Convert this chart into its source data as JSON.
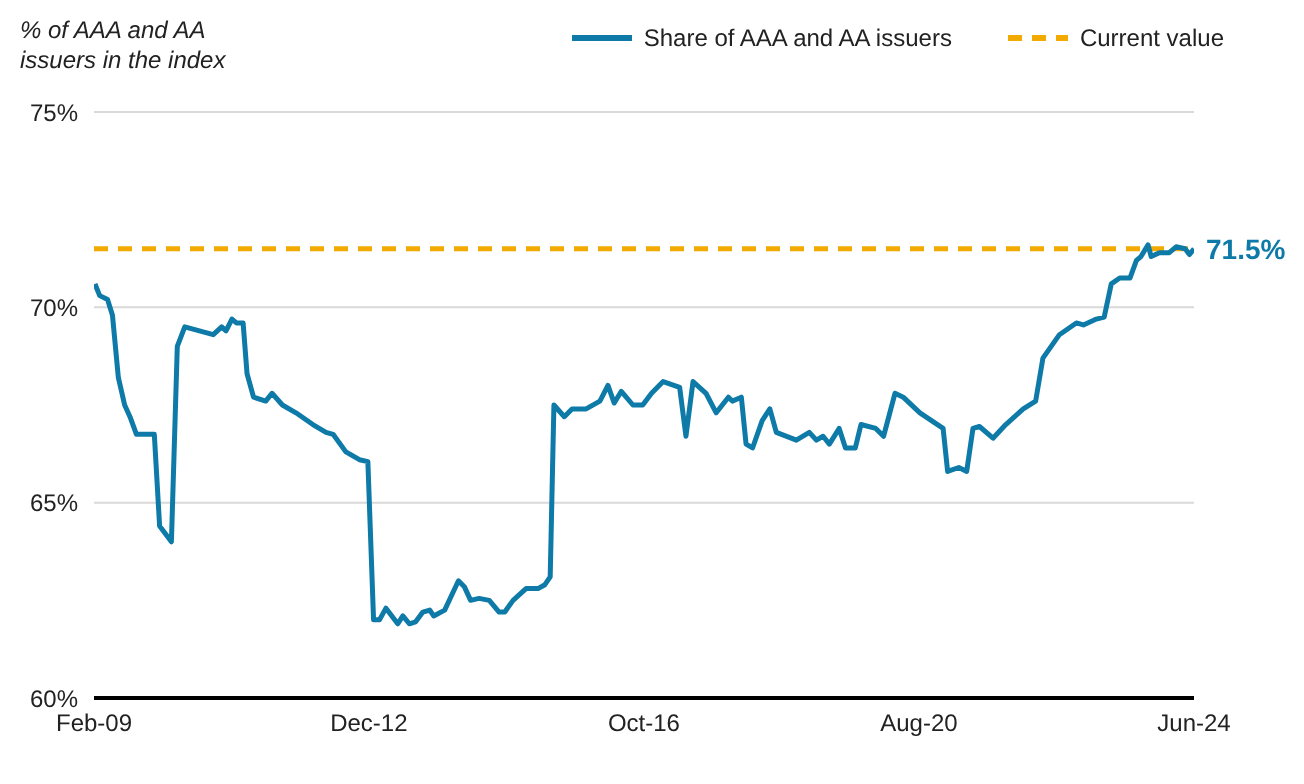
{
  "chart_data": {
    "type": "line",
    "ylabel": "% of AAA and AA issuers in the index",
    "xlim": [
      "2009-02",
      "2024-06"
    ],
    "xticks": [
      {
        "value": "2009-02",
        "label": "Feb-09"
      },
      {
        "value": "2012-12",
        "label": "Dec-12"
      },
      {
        "value": "2016-10",
        "label": "Oct-16"
      },
      {
        "value": "2020-08",
        "label": "Aug-20"
      },
      {
        "value": "2024-06",
        "label": "Jun-24"
      }
    ],
    "ylim": [
      60,
      75
    ],
    "yticks": [
      {
        "value": 60,
        "label": "60%"
      },
      {
        "value": 65,
        "label": "65%"
      },
      {
        "value": 70,
        "label": "70%"
      },
      {
        "value": 75,
        "label": "75%"
      }
    ],
    "grid": "y",
    "legend": "top right",
    "marker": "none",
    "line_style": "solid",
    "series": [
      {
        "name": "Share of AAA and AA issuers",
        "color": "#0e7aa8",
        "x": [
          "2009-02-06",
          "2009-03-02",
          "2009-04-11",
          "2009-05-06",
          "2009-06-05",
          "2009-07-07",
          "2009-08-03",
          "2009-09-05",
          "2009-12-05",
          "2010-01-01",
          "2010-03-02",
          "2010-04-01",
          "2010-05-09",
          "2010-10-01",
          "2010-11-13",
          "2010-12-05",
          "2011-01-04",
          "2011-01-27",
          "2011-03-02",
          "2011-03-22",
          "2011-04-24",
          "2011-06-25",
          "2011-07-27",
          "2011-09-18",
          "2011-11-26",
          "2012-02-20",
          "2012-04-27",
          "2012-06-02",
          "2012-08-06",
          "2012-10-14",
          "2012-11-26",
          "2012-12-25",
          "2013-01-24",
          "2013-02-26",
          "2013-04-27",
          "2013-05-23",
          "2013-06-25",
          "2013-07-27",
          "2013-09-02",
          "2013-10-07",
          "2013-10-27",
          "2013-12-22",
          "2014-03-02",
          "2014-04-01",
          "2014-05-03",
          "2014-06-15",
          "2014-08-06",
          "2014-09-25",
          "2014-10-24",
          "2014-12-05",
          "2015-02-09",
          "2015-04-11",
          "2015-05-16",
          "2015-06-12",
          "2015-07-01",
          "2015-08-23",
          "2015-10-01",
          "2015-12-12",
          "2016-02-20",
          "2016-04-01",
          "2016-05-03",
          "2016-06-08",
          "2016-08-06",
          "2016-09-25",
          "2016-11-09",
          "2017-01-07",
          "2017-04-01",
          "2017-05-03",
          "2017-06-08",
          "2017-08-13",
          "2017-10-04",
          "2017-12-05",
          "2017-12-25",
          "2018-02-09",
          "2018-03-05",
          "2018-04-07",
          "2018-05-26",
          "2018-07-04",
          "2018-08-06",
          "2018-11-16",
          "2019-01-21",
          "2019-02-26",
          "2019-04-01",
          "2019-05-03",
          "2019-06-22",
          "2019-07-24",
          "2019-09-12",
          "2019-10-11",
          "2019-12-25",
          "2020-02-03",
          "2020-04-01",
          "2020-05-13",
          "2020-08-06",
          "2020-12-02",
          "2020-12-25",
          "2021-02-20",
          "2021-04-01",
          "2021-05-03",
          "2021-06-05",
          "2021-08-13",
          "2021-10-17",
          "2022-01-14",
          "2022-03-18",
          "2022-04-24",
          "2022-07-17",
          "2022-10-11",
          "2022-11-16",
          "2023-01-21",
          "2023-03-02",
          "2023-04-07",
          "2023-05-20",
          "2023-07-11",
          "2023-08-13",
          "2023-09-05",
          "2023-10-11",
          "2023-10-27",
          "2023-12-08",
          "2024-01-27",
          "2024-03-02",
          "2024-04-17",
          "2024-05-09",
          "2024-06-01"
        ],
        "values": [
          70.6,
          70.3,
          70.2,
          69.8,
          68.2,
          67.5,
          67.2,
          66.75,
          66.75,
          64.4,
          64.0,
          69.0,
          69.5,
          69.3,
          69.5,
          69.4,
          69.7,
          69.6,
          69.6,
          68.3,
          67.7,
          67.6,
          67.8,
          67.5,
          67.3,
          67.0,
          66.8,
          66.75,
          66.3,
          66.1,
          66.05,
          62.0,
          62.0,
          62.3,
          61.9,
          62.1,
          61.9,
          61.95,
          62.2,
          62.25,
          62.1,
          62.25,
          63.0,
          62.85,
          62.5,
          62.55,
          62.5,
          62.2,
          62.2,
          62.5,
          62.8,
          62.8,
          62.9,
          63.1,
          67.5,
          67.2,
          67.4,
          67.4,
          67.6,
          68.0,
          67.55,
          67.85,
          67.5,
          67.5,
          67.8,
          68.1,
          67.95,
          66.7,
          68.1,
          67.8,
          67.3,
          67.7,
          67.6,
          67.7,
          66.5,
          66.4,
          67.1,
          67.4,
          66.8,
          66.6,
          66.8,
          66.6,
          66.7,
          66.5,
          66.9,
          66.4,
          66.4,
          67.0,
          66.9,
          66.7,
          67.8,
          67.7,
          67.3,
          66.9,
          65.8,
          65.9,
          65.8,
          66.9,
          66.95,
          66.65,
          67.0,
          67.4,
          67.6,
          68.7,
          69.3,
          69.6,
          69.55,
          69.7,
          69.75,
          70.6,
          70.75,
          70.75,
          71.2,
          71.3,
          71.6,
          71.3,
          71.4,
          71.4,
          71.55,
          71.5,
          71.35,
          71.5
        ]
      }
    ],
    "ref_lines": [
      {
        "axis": "y",
        "value": 71.5,
        "label": "Current value",
        "color": "#f2a900",
        "line_style": "dashed"
      }
    ],
    "annotations": [
      {
        "text": "71.5%",
        "x": "2024-06-01",
        "y": 71.5
      }
    ]
  }
}
